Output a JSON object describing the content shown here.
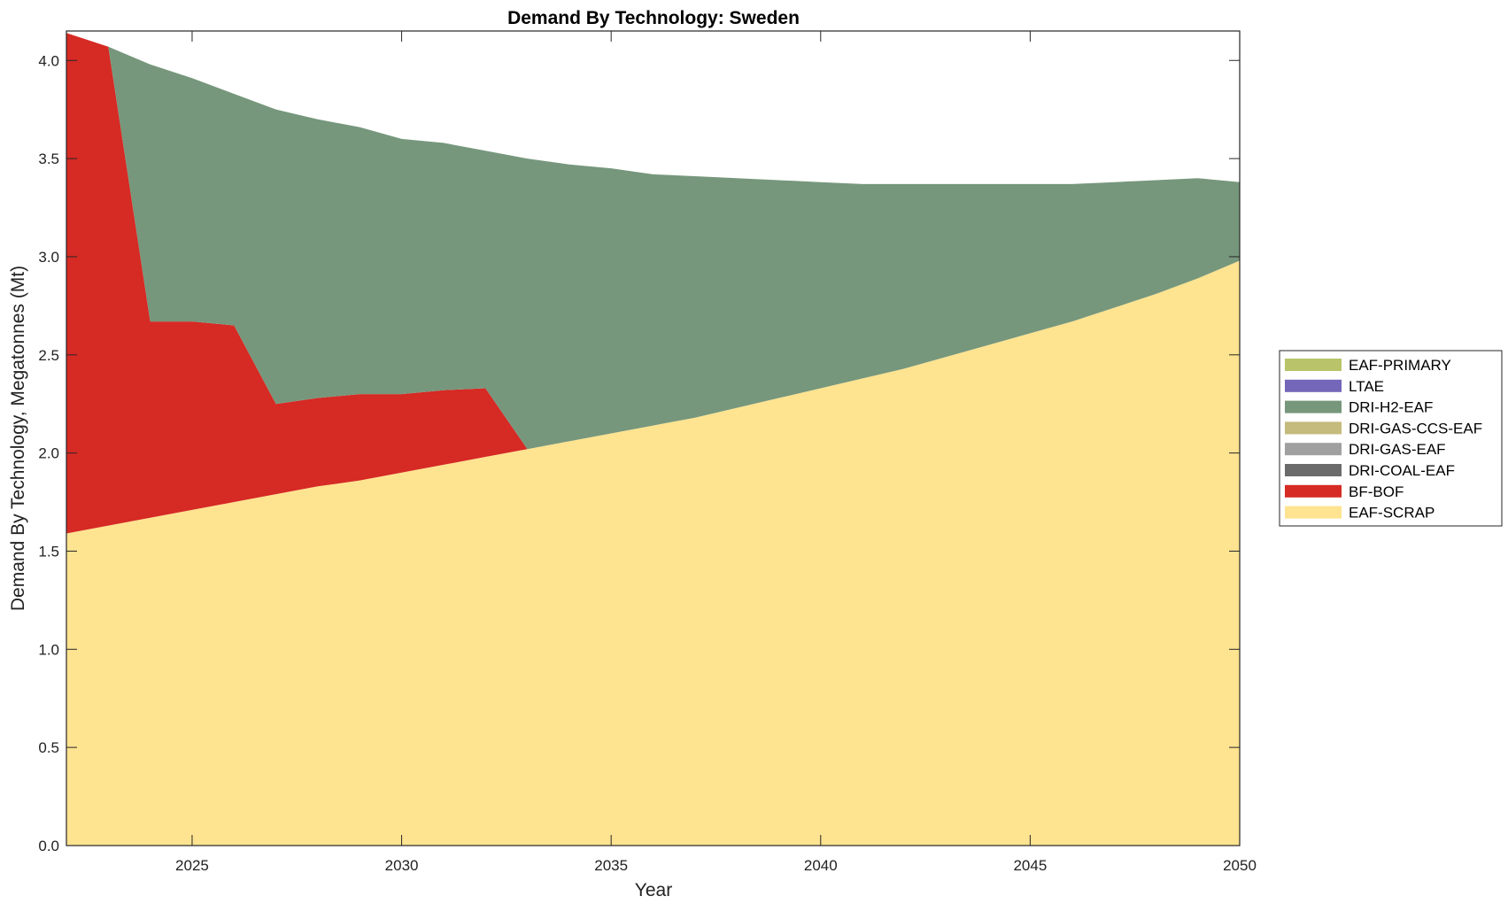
{
  "chart_data": {
    "type": "area",
    "stacked": true,
    "title": "Demand By Technology: Sweden",
    "xlabel": "Year",
    "ylabel": "Demand By Technology, Megatonnes (Mt)",
    "xlim": [
      2022,
      2050
    ],
    "ylim": [
      0,
      4.15
    ],
    "xticks": [
      2025,
      2030,
      2035,
      2040,
      2045,
      2050
    ],
    "yticks": [
      0.0,
      0.5,
      1.0,
      1.5,
      2.0,
      2.5,
      3.0,
      3.5,
      4.0
    ],
    "ytick_labels": [
      "0.0",
      "0.5",
      "1.0",
      "1.5",
      "2.0",
      "2.5",
      "3.0",
      "3.5",
      "4.0"
    ],
    "grid": false,
    "legend_position": "right",
    "x": [
      2022,
      2023,
      2024,
      2025,
      2026,
      2027,
      2028,
      2029,
      2030,
      2031,
      2032,
      2033,
      2034,
      2035,
      2036,
      2037,
      2038,
      2039,
      2040,
      2041,
      2042,
      2043,
      2044,
      2045,
      2046,
      2047,
      2048,
      2049,
      2050
    ],
    "series": [
      {
        "name": "EAF-SCRAP",
        "color": "#fee391",
        "values": [
          1.59,
          1.63,
          1.67,
          1.71,
          1.75,
          1.79,
          1.83,
          1.86,
          1.9,
          1.94,
          1.98,
          2.02,
          2.06,
          2.1,
          2.14,
          2.18,
          2.23,
          2.28,
          2.33,
          2.38,
          2.43,
          2.49,
          2.55,
          2.61,
          2.67,
          2.74,
          2.81,
          2.89,
          2.98
        ]
      },
      {
        "name": "BF-BOF",
        "color": "#d62a24",
        "values": [
          2.55,
          2.44,
          1.0,
          0.96,
          0.9,
          0.46,
          0.45,
          0.44,
          0.4,
          0.38,
          0.35,
          0,
          0,
          0,
          0,
          0,
          0,
          0,
          0,
          0,
          0,
          0,
          0,
          0,
          0,
          0,
          0,
          0,
          0
        ]
      },
      {
        "name": "DRI-COAL-EAF",
        "color": "#6b6b6b",
        "values": [
          0,
          0,
          0,
          0,
          0,
          0,
          0,
          0,
          0,
          0,
          0,
          0,
          0,
          0,
          0,
          0,
          0,
          0,
          0,
          0,
          0,
          0,
          0,
          0,
          0,
          0,
          0,
          0,
          0
        ]
      },
      {
        "name": "DRI-GAS-EAF",
        "color": "#a0a0a0",
        "values": [
          0,
          0,
          0,
          0,
          0,
          0,
          0,
          0,
          0,
          0,
          0,
          0,
          0,
          0,
          0,
          0,
          0,
          0,
          0,
          0,
          0,
          0,
          0,
          0,
          0,
          0,
          0,
          0,
          0
        ]
      },
      {
        "name": "DRI-GAS-CCS-EAF",
        "color": "#c4bb7c",
        "values": [
          0,
          0,
          0,
          0,
          0,
          0,
          0,
          0,
          0,
          0,
          0,
          0,
          0,
          0,
          0,
          0,
          0,
          0,
          0,
          0,
          0,
          0,
          0,
          0,
          0,
          0,
          0,
          0,
          0
        ]
      },
      {
        "name": "DRI-H2-EAF",
        "color": "#76977c",
        "values": [
          0,
          0,
          1.31,
          1.24,
          1.18,
          1.5,
          1.42,
          1.36,
          1.3,
          1.26,
          1.21,
          1.48,
          1.41,
          1.35,
          1.28,
          1.23,
          1.17,
          1.11,
          1.05,
          0.99,
          0.94,
          0.88,
          0.82,
          0.76,
          0.7,
          0.64,
          0.58,
          0.51,
          0.4
        ]
      },
      {
        "name": "LTAE",
        "color": "#7466b8",
        "values": [
          0,
          0,
          0,
          0,
          0,
          0,
          0,
          0,
          0,
          0,
          0,
          0,
          0,
          0,
          0,
          0,
          0,
          0,
          0,
          0,
          0,
          0,
          0,
          0,
          0,
          0,
          0,
          0,
          0
        ]
      },
      {
        "name": "EAF-PRIMARY",
        "color": "#b9c46a",
        "values": [
          0,
          0,
          0,
          0,
          0,
          0,
          0,
          0,
          0,
          0,
          0,
          0,
          0,
          0,
          0,
          0,
          0,
          0,
          0,
          0,
          0,
          0,
          0,
          0,
          0,
          0,
          0,
          0,
          0
        ]
      }
    ],
    "legend_order": [
      "EAF-PRIMARY",
      "LTAE",
      "DRI-H2-EAF",
      "DRI-GAS-CCS-EAF",
      "DRI-GAS-EAF",
      "DRI-COAL-EAF",
      "BF-BOF",
      "EAF-SCRAP"
    ]
  }
}
